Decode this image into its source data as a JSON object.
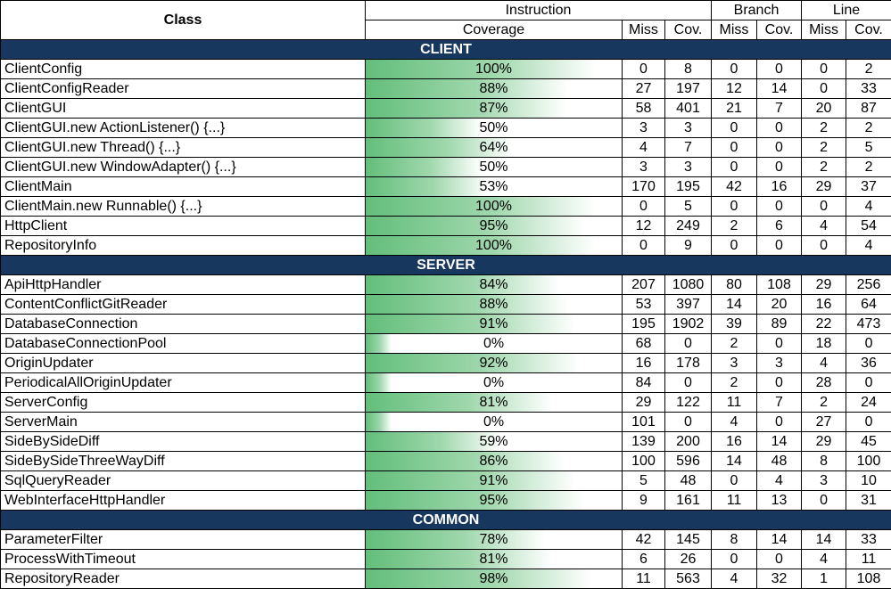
{
  "header": {
    "class_label": "Class",
    "instruction_label": "Instruction",
    "branch_label": "Branch",
    "line_label": "Line",
    "coverage_label": "Coverage",
    "miss_label": "Miss",
    "cov_label": "Cov."
  },
  "bar_color": "#63be7b",
  "section_color": "#17375e",
  "sections": [
    {
      "name": "CLIENT",
      "rows": [
        {
          "cls": "ClientConfig",
          "coverage": "100%",
          "cov_fraction": 1.0,
          "i_miss": "0",
          "i_cov": "8",
          "b_miss": "0",
          "b_cov": "0",
          "l_miss": "0",
          "l_cov": "2"
        },
        {
          "cls": "ClientConfigReader",
          "coverage": "88%",
          "cov_fraction": 0.88,
          "i_miss": "27",
          "i_cov": "197",
          "b_miss": "12",
          "b_cov": "14",
          "l_miss": "0",
          "l_cov": "33"
        },
        {
          "cls": "ClientGUI",
          "coverage": "87%",
          "cov_fraction": 0.87,
          "i_miss": "58",
          "i_cov": "401",
          "b_miss": "21",
          "b_cov": "7",
          "l_miss": "20",
          "l_cov": "87"
        },
        {
          "cls": "ClientGUI.new ActionListener() {...}",
          "coverage": "50%",
          "cov_fraction": 0.5,
          "i_miss": "3",
          "i_cov": "3",
          "b_miss": "0",
          "b_cov": "0",
          "l_miss": "2",
          "l_cov": "2"
        },
        {
          "cls": "ClientGUI.new Thread() {...}",
          "coverage": "64%",
          "cov_fraction": 0.64,
          "i_miss": "4",
          "i_cov": "7",
          "b_miss": "0",
          "b_cov": "0",
          "l_miss": "2",
          "l_cov": "5"
        },
        {
          "cls": "ClientGUI.new WindowAdapter() {...}",
          "coverage": "50%",
          "cov_fraction": 0.5,
          "i_miss": "3",
          "i_cov": "3",
          "b_miss": "0",
          "b_cov": "0",
          "l_miss": "2",
          "l_cov": "2"
        },
        {
          "cls": "ClientMain",
          "coverage": "53%",
          "cov_fraction": 0.53,
          "i_miss": "170",
          "i_cov": "195",
          "b_miss": "42",
          "b_cov": "16",
          "l_miss": "29",
          "l_cov": "37"
        },
        {
          "cls": "ClientMain.new Runnable() {...}",
          "coverage": "100%",
          "cov_fraction": 1.0,
          "i_miss": "0",
          "i_cov": "5",
          "b_miss": "0",
          "b_cov": "0",
          "l_miss": "0",
          "l_cov": "4"
        },
        {
          "cls": "HttpClient",
          "coverage": "95%",
          "cov_fraction": 0.95,
          "i_miss": "12",
          "i_cov": "249",
          "b_miss": "2",
          "b_cov": "6",
          "l_miss": "4",
          "l_cov": "54"
        },
        {
          "cls": "RepositoryInfo",
          "coverage": "100%",
          "cov_fraction": 1.0,
          "i_miss": "0",
          "i_cov": "9",
          "b_miss": "0",
          "b_cov": "0",
          "l_miss": "0",
          "l_cov": "4"
        }
      ]
    },
    {
      "name": "SERVER",
      "rows": [
        {
          "cls": "ApiHttpHandler",
          "coverage": "84%",
          "cov_fraction": 0.84,
          "i_miss": "207",
          "i_cov": "1080",
          "b_miss": "80",
          "b_cov": "108",
          "l_miss": "29",
          "l_cov": "256"
        },
        {
          "cls": "ContentConflictGitReader",
          "coverage": "88%",
          "cov_fraction": 0.88,
          "i_miss": "53",
          "i_cov": "397",
          "b_miss": "14",
          "b_cov": "20",
          "l_miss": "16",
          "l_cov": "64"
        },
        {
          "cls": "DatabaseConnection",
          "coverage": "91%",
          "cov_fraction": 0.91,
          "i_miss": "195",
          "i_cov": "1902",
          "b_miss": "39",
          "b_cov": "89",
          "l_miss": "22",
          "l_cov": "473"
        },
        {
          "cls": "DatabaseConnectionPool",
          "coverage": "0%",
          "cov_fraction": 0.0,
          "i_miss": "68",
          "i_cov": "0",
          "b_miss": "2",
          "b_cov": "0",
          "l_miss": "18",
          "l_cov": "0"
        },
        {
          "cls": "OriginUpdater",
          "coverage": "92%",
          "cov_fraction": 0.92,
          "i_miss": "16",
          "i_cov": "178",
          "b_miss": "3",
          "b_cov": "3",
          "l_miss": "4",
          "l_cov": "36"
        },
        {
          "cls": "PeriodicalAllOriginUpdater",
          "coverage": "0%",
          "cov_fraction": 0.0,
          "i_miss": "84",
          "i_cov": "0",
          "b_miss": "2",
          "b_cov": "0",
          "l_miss": "28",
          "l_cov": "0"
        },
        {
          "cls": "ServerConfig",
          "coverage": "81%",
          "cov_fraction": 0.81,
          "i_miss": "29",
          "i_cov": "122",
          "b_miss": "11",
          "b_cov": "7",
          "l_miss": "2",
          "l_cov": "24"
        },
        {
          "cls": "ServerMain",
          "coverage": "0%",
          "cov_fraction": 0.0,
          "i_miss": "101",
          "i_cov": "0",
          "b_miss": "4",
          "b_cov": "0",
          "l_miss": "27",
          "l_cov": "0"
        },
        {
          "cls": "SideBySideDiff",
          "coverage": "59%",
          "cov_fraction": 0.59,
          "i_miss": "139",
          "i_cov": "200",
          "b_miss": "16",
          "b_cov": "14",
          "l_miss": "29",
          "l_cov": "45"
        },
        {
          "cls": "SideBySideThreeWayDiff",
          "coverage": "86%",
          "cov_fraction": 0.86,
          "i_miss": "100",
          "i_cov": "596",
          "b_miss": "14",
          "b_cov": "48",
          "l_miss": "8",
          "l_cov": "100"
        },
        {
          "cls": "SqlQueryReader",
          "coverage": "91%",
          "cov_fraction": 0.91,
          "i_miss": "5",
          "i_cov": "48",
          "b_miss": "0",
          "b_cov": "4",
          "l_miss": "3",
          "l_cov": "10"
        },
        {
          "cls": "WebInterfaceHttpHandler",
          "coverage": "95%",
          "cov_fraction": 0.95,
          "i_miss": "9",
          "i_cov": "161",
          "b_miss": "11",
          "b_cov": "13",
          "l_miss": "0",
          "l_cov": "31"
        }
      ]
    },
    {
      "name": "COMMON",
      "rows": [
        {
          "cls": "ParameterFilter",
          "coverage": "78%",
          "cov_fraction": 0.78,
          "i_miss": "42",
          "i_cov": "145",
          "b_miss": "8",
          "b_cov": "14",
          "l_miss": "14",
          "l_cov": "33"
        },
        {
          "cls": "ProcessWithTimeout",
          "coverage": "81%",
          "cov_fraction": 0.81,
          "i_miss": "6",
          "i_cov": "26",
          "b_miss": "0",
          "b_cov": "0",
          "l_miss": "4",
          "l_cov": "11"
        },
        {
          "cls": "RepositoryReader",
          "coverage": "98%",
          "cov_fraction": 0.98,
          "i_miss": "11",
          "i_cov": "563",
          "b_miss": "4",
          "b_cov": "32",
          "l_miss": "1",
          "l_cov": "108"
        }
      ]
    }
  ]
}
